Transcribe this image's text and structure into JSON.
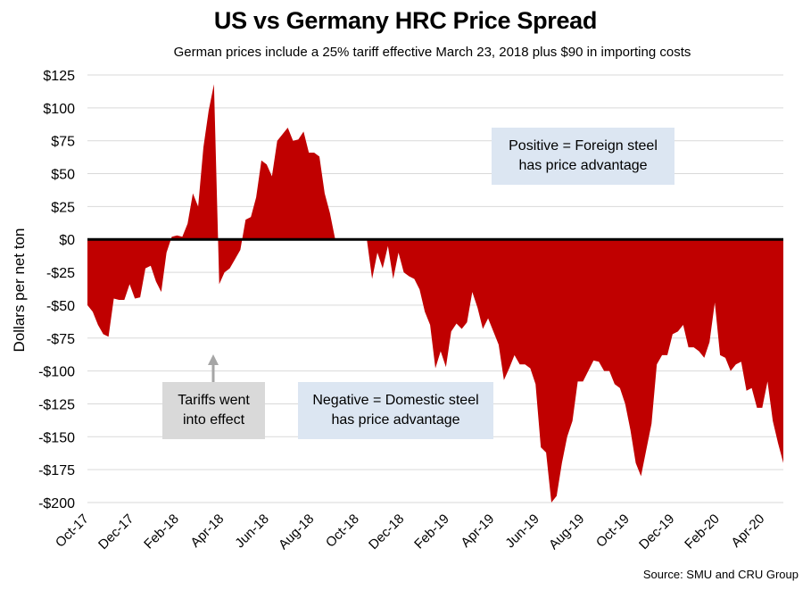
{
  "chart_data": {
    "type": "area",
    "title": "US vs Germany HRC Price Spread",
    "subtitle": "German prices include a 25% tariff effective March 23, 2018 plus $90 in importing costs",
    "xlabel": "",
    "ylabel": "Dollars per net ton",
    "ylim": [
      -200,
      125
    ],
    "y_ticks": [
      125,
      100,
      75,
      50,
      25,
      0,
      -25,
      -50,
      -75,
      -100,
      -125,
      -150,
      -175,
      -200
    ],
    "y_tick_labels": [
      "$125",
      "$100",
      "$75",
      "$50",
      "$25",
      "$0",
      "-$25",
      "-$50",
      "-$75",
      "-$100",
      "-$125",
      "-$150",
      "-$175",
      "-$200"
    ],
    "x_tick_labels": [
      "Oct-17",
      "Dec-17",
      "Feb-18",
      "Apr-18",
      "Jun-18",
      "Aug-18",
      "Oct-18",
      "Dec-18",
      "Feb-19",
      "Apr-19",
      "Jun-19",
      "Aug-19",
      "Oct-19",
      "Dec-19",
      "Feb-20",
      "Apr-20"
    ],
    "x_unit": "weekly observations, Oct-2017 to Apr-2020",
    "grid": "horizontal",
    "legend": "none",
    "series": [
      {
        "name": "US vs Germany HRC price spread ($/net ton)",
        "color": "#c00000",
        "values": [
          -50,
          -55,
          -65,
          -72,
          -74,
          -45,
          -46,
          -46,
          -34,
          -45,
          -44,
          -22,
          -20,
          -32,
          -40,
          -10,
          2,
          3,
          2,
          12,
          35,
          25,
          70,
          98,
          118,
          -34,
          -25,
          -22,
          -15,
          -8,
          15,
          17,
          32,
          60,
          57,
          48,
          75,
          80,
          85,
          75,
          76,
          82,
          66,
          66,
          63,
          35,
          20,
          0,
          0,
          0,
          0,
          0,
          0,
          0,
          -30,
          -10,
          -22,
          -5,
          -30,
          -10,
          -25,
          -28,
          -30,
          -38,
          -55,
          -65,
          -98,
          -85,
          -97,
          -70,
          -64,
          -68,
          -63,
          -40,
          -52,
          -68,
          -60,
          -70,
          -80,
          -107,
          -98,
          -88,
          -95,
          -95,
          -98,
          -110,
          -158,
          -162,
          -200,
          -195,
          -170,
          -150,
          -138,
          -108,
          -108,
          -100,
          -92,
          -93,
          -100,
          -100,
          -110,
          -113,
          -125,
          -145,
          -170,
          -180,
          -160,
          -140,
          -95,
          -88,
          -88,
          -72,
          -70,
          -65,
          -82,
          -82,
          -85,
          -90,
          -78,
          -48,
          -88,
          -90,
          -100,
          -95,
          -93,
          -115,
          -113,
          -128,
          -128,
          -108,
          -138,
          -155,
          -170
        ]
      }
    ],
    "annotations": [
      {
        "text": "Positive = Foreign steel has price advantage",
        "lines": [
          "Positive = Foreign steel",
          "has price advantage"
        ]
      },
      {
        "text": "Negative = Domestic steel has price advantage",
        "lines": [
          "Negative = Domestic steel",
          "has price advantage"
        ]
      },
      {
        "text": "Tariffs went into effect",
        "lines": [
          "Tariffs went",
          "into effect"
        ],
        "points_to": "Apr-18"
      }
    ],
    "source": "Source: SMU and CRU Group"
  }
}
